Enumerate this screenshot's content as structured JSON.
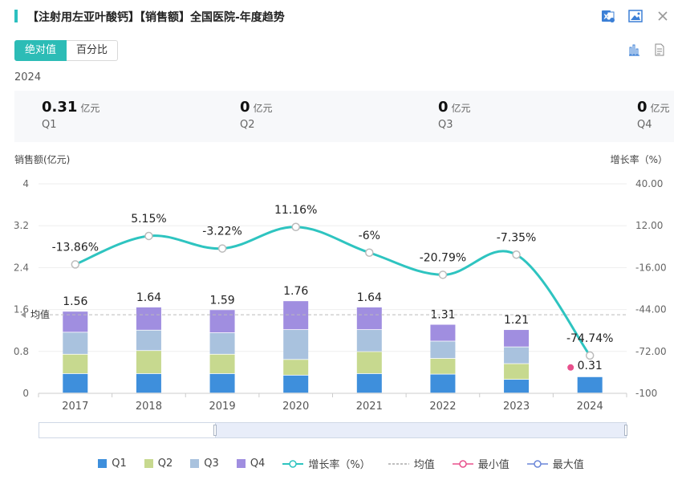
{
  "header": {
    "title": "【注射用左亚叶酸钙】【销售额】全国医院-年度趋势"
  },
  "tabs": {
    "absolute": "绝对值",
    "percent": "百分比"
  },
  "year_label": "2024",
  "summary": [
    {
      "value": "0.31",
      "unit": "亿元",
      "quarter": "Q1"
    },
    {
      "value": "0",
      "unit": "亿元",
      "quarter": "Q2"
    },
    {
      "value": "0",
      "unit": "亿元",
      "quarter": "Q3"
    },
    {
      "value": "0",
      "unit": "亿元",
      "quarter": "Q4"
    }
  ],
  "colors": {
    "Q1": "#3e8fdc",
    "Q2": "#c7d98f",
    "Q3": "#a9c2de",
    "Q4": "#a08ee0",
    "growth": "#2ec4c0",
    "min": "#e8508c",
    "max": "#6a86d8",
    "accent": "#2cbcb6"
  },
  "chart_data": {
    "type": "bar",
    "stacked": true,
    "categories": [
      "2017",
      "2018",
      "2019",
      "2020",
      "2021",
      "2022",
      "2023",
      "2024"
    ],
    "series": [
      {
        "name": "Q1",
        "values": [
          0.37,
          0.37,
          0.37,
          0.34,
          0.37,
          0.36,
          0.26,
          0.31
        ]
      },
      {
        "name": "Q2",
        "values": [
          0.37,
          0.44,
          0.37,
          0.3,
          0.42,
          0.3,
          0.3,
          0
        ]
      },
      {
        "name": "Q3",
        "values": [
          0.42,
          0.39,
          0.41,
          0.57,
          0.42,
          0.33,
          0.32,
          0
        ]
      },
      {
        "name": "Q4",
        "values": [
          0.4,
          0.44,
          0.44,
          0.55,
          0.43,
          0.32,
          0.33,
          0
        ]
      }
    ],
    "totals": [
      1.56,
      1.64,
      1.59,
      1.76,
      1.64,
      1.31,
      1.21,
      0.31
    ],
    "total_labels": [
      "1.56",
      "1.64",
      "1.59",
      "1.76",
      "1.64",
      "1.31",
      "1.21",
      "0.31"
    ],
    "growth_series": {
      "name": "增长率（%）",
      "values": [
        -13.86,
        5.15,
        -3.22,
        11.16,
        -6,
        -20.79,
        -7.35,
        -74.74
      ],
      "labels": [
        "-13.86%",
        "5.15%",
        "-3.22%",
        "11.16%",
        "-6%",
        "-20.79%",
        "-7.35%",
        "-74.74%"
      ]
    },
    "average": {
      "label": "均值",
      "value": 1.5
    },
    "min_point": {
      "category": "2024",
      "value": 0.31
    },
    "ylabel_left": "销售额(亿元)",
    "ylabel_right": "增长率（%）",
    "ylim_left": [
      0,
      4
    ],
    "yticks_left": [
      "0",
      "0.8",
      "1.6",
      "2.4",
      "3.2",
      "4"
    ],
    "ylim_right": [
      -100,
      40
    ],
    "yticks_right": [
      "-100",
      "-72.00",
      "-44.00",
      "-16.00",
      "12.00",
      "40.00"
    ],
    "legend": [
      "Q1",
      "Q2",
      "Q3",
      "Q4",
      "增长率（%）",
      "均值",
      "最小值",
      "最大值"
    ]
  }
}
